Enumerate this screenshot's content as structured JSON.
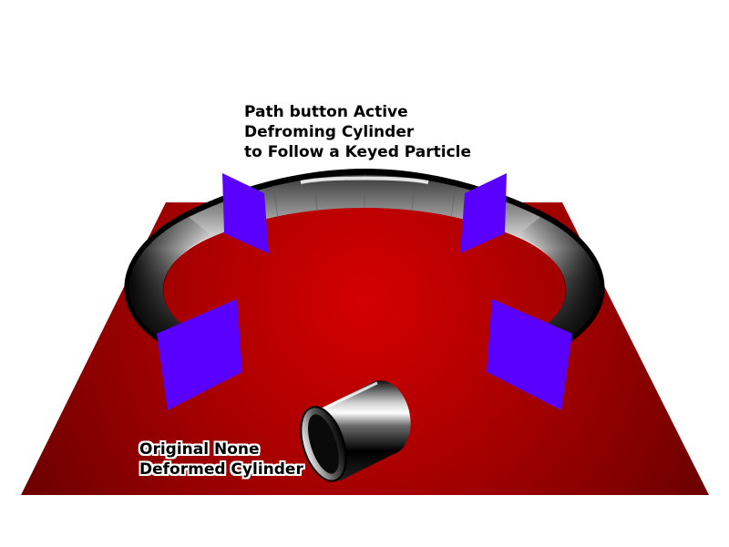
{
  "captions": {
    "deformed": {
      "line1": "Path button Active",
      "line2": "Defroming Cylinder",
      "line3": "to Follow a Keyed Particle"
    },
    "original": {
      "line1": "Original None",
      "line2": "Deformed Cylinder"
    }
  },
  "colors": {
    "floor_center": "#d40000",
    "floor_edge": "#6e0000",
    "keyframe_planes": "#5a00ff",
    "tube_light": "#f2f2f2",
    "tube_dark": "#000000"
  }
}
